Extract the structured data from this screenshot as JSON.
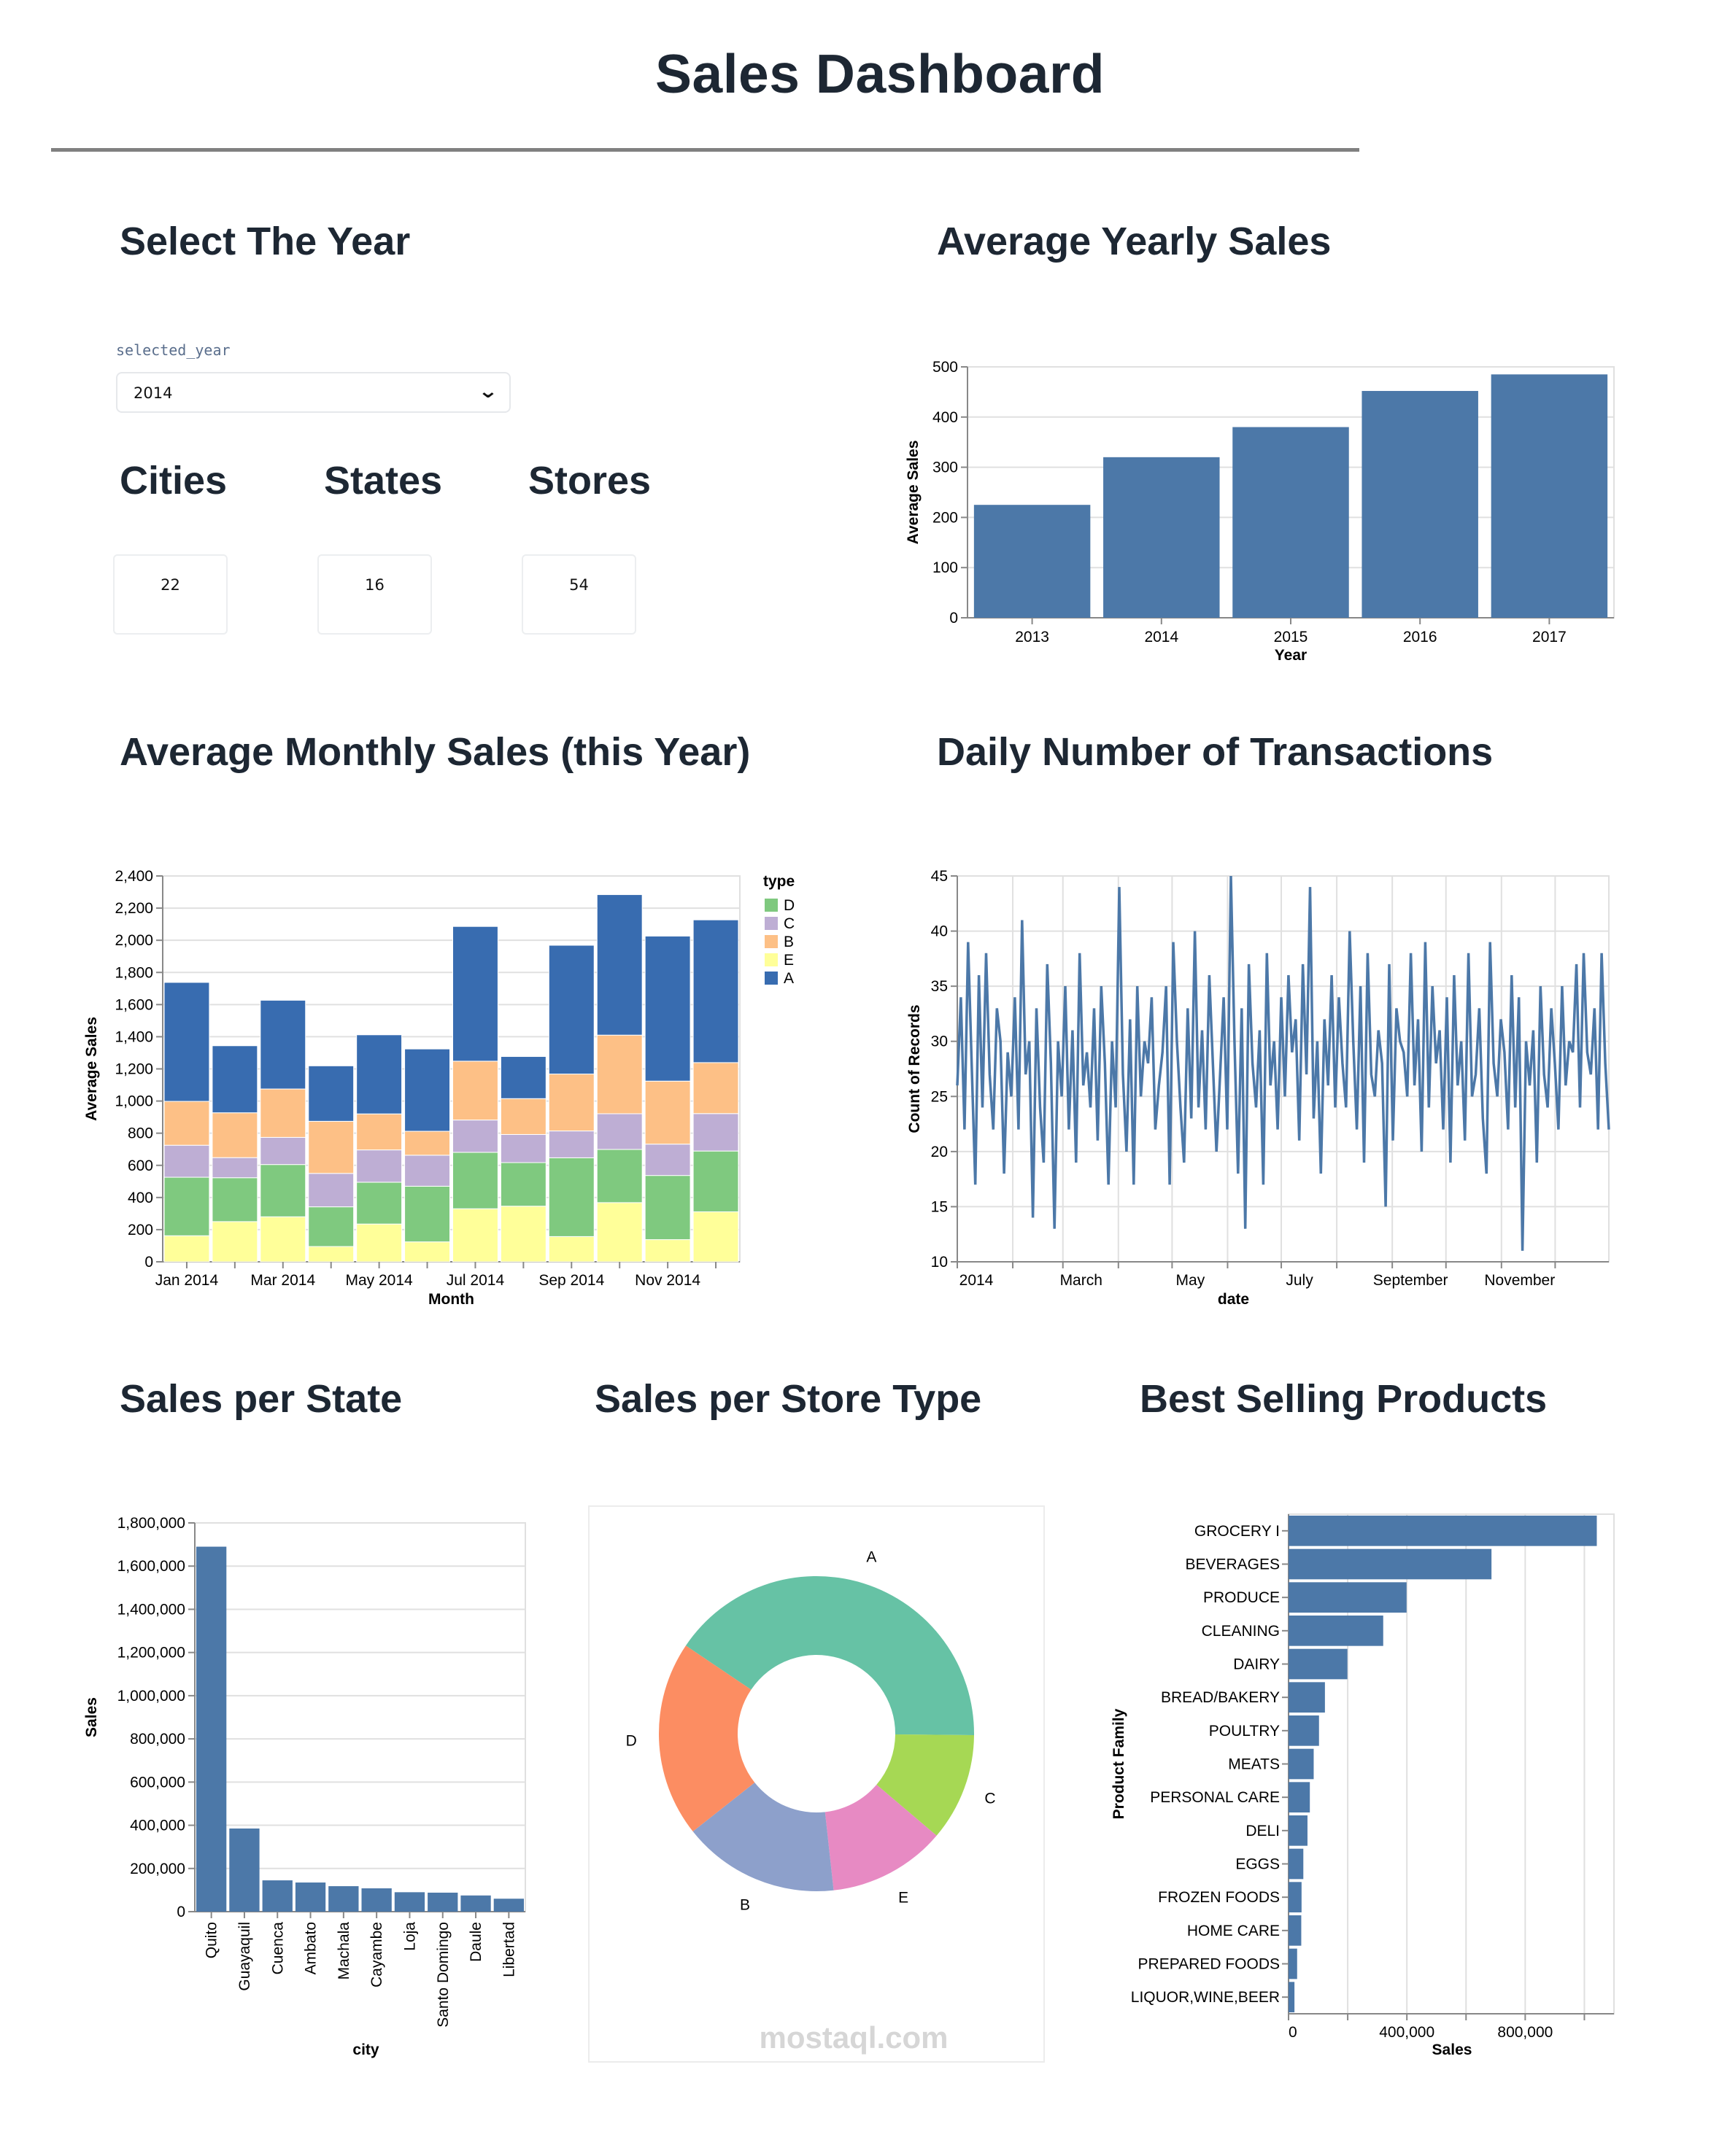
{
  "header": {
    "title": "Sales Dashboard"
  },
  "year_selector": {
    "heading": "Select The Year",
    "label": "selected_year",
    "value": "2014",
    "icon": "chevron-down-icon"
  },
  "kpis": [
    {
      "label": "Cities",
      "value": "22"
    },
    {
      "label": "States",
      "value": "16"
    },
    {
      "label": "Stores",
      "value": "54"
    }
  ],
  "headings": {
    "yearly": "Average Yearly Sales",
    "monthly": "Average Monthly Sales (this Year)",
    "daily": "Daily Number of Transactions",
    "state": "Sales per State",
    "store_type": "Sales per Store Type",
    "products": "Best Selling Products"
  },
  "watermark": "mostaql.com",
  "chart_data": [
    {
      "id": "yearly",
      "type": "bar",
      "categories": [
        "2013",
        "2014",
        "2015",
        "2016",
        "2017"
      ],
      "values": [
        225,
        320,
        380,
        452,
        485
      ],
      "xlabel": "Year",
      "ylabel": "Average Sales",
      "ylim": [
        0,
        500
      ],
      "yticks": [
        "0",
        "100",
        "200",
        "300",
        "400",
        "500"
      ],
      "grid": true,
      "color": "#4c78a8"
    },
    {
      "id": "monthly",
      "type": "bar",
      "stacked": true,
      "categories": [
        "Jan 2014",
        "Feb 2014",
        "Mar 2014",
        "Apr 2014",
        "May 2014",
        "Jun 2014",
        "Jul 2014",
        "Aug 2014",
        "Sep 2014",
        "Oct 2014",
        "Nov 2014",
        "Dec 2014"
      ],
      "xticklabels": [
        "Jan 2014",
        "",
        "Mar 2014",
        "",
        "May 2014",
        "",
        "Jul 2014",
        "",
        "Sep 2014",
        "",
        "Nov 2014",
        ""
      ],
      "series": [
        {
          "name": "E",
          "color": "#ffff99",
          "values": [
            162,
            250,
            280,
            95,
            235,
            124,
            330,
            346,
            157,
            368,
            138,
            311
          ]
        },
        {
          "name": "D",
          "color": "#7fc97f",
          "values": [
            364,
            273,
            325,
            247,
            260,
            346,
            351,
            271,
            490,
            331,
            399,
            378
          ]
        },
        {
          "name": "C",
          "color": "#beaed4",
          "values": [
            199,
            125,
            169,
            208,
            201,
            193,
            201,
            175,
            167,
            222,
            195,
            233
          ]
        },
        {
          "name": "B",
          "color": "#fdc086",
          "values": [
            273,
            279,
            301,
            324,
            224,
            149,
            366,
            223,
            354,
            489,
            392,
            317
          ]
        },
        {
          "name": "A",
          "color": "#386cb0",
          "values": [
            740,
            417,
            552,
            345,
            492,
            512,
            838,
            262,
            801,
            874,
            902,
            888
          ]
        }
      ],
      "legend": {
        "title": "type",
        "order": [
          "D",
          "C",
          "B",
          "E",
          "A"
        ],
        "placement": "right"
      },
      "xlabel": "Month",
      "ylabel": "Average Sales",
      "ylim": [
        0,
        2400
      ],
      "yticks": [
        "0",
        "200",
        "400",
        "600",
        "800",
        "1,000",
        "1,200",
        "1,400",
        "1,600",
        "1,800",
        "2,000",
        "2,200",
        "2,400"
      ],
      "grid": true
    },
    {
      "id": "daily",
      "type": "line",
      "date_range": [
        "2014-01-01",
        "2014-12-31"
      ],
      "xticklabels": [
        "2014",
        "March",
        "May",
        "July",
        "September",
        "November"
      ],
      "values": [
        26,
        34,
        22,
        39,
        28,
        17,
        36,
        24,
        38,
        27,
        22,
        33,
        30,
        18,
        29,
        25,
        34,
        22,
        41,
        27,
        30,
        14,
        33,
        24,
        19,
        37,
        28,
        13,
        30,
        25,
        35,
        22,
        31,
        19,
        38,
        26,
        29,
        24,
        33,
        21,
        35,
        28,
        17,
        30,
        24,
        44,
        27,
        20,
        32,
        17,
        35,
        25,
        30,
        28,
        34,
        22,
        26,
        29,
        35,
        17,
        39,
        30,
        24,
        19,
        33,
        23,
        40,
        24,
        31,
        22,
        36,
        28,
        20,
        27,
        34,
        22,
        45,
        30,
        18,
        33,
        13,
        37,
        28,
        24,
        31,
        17,
        38,
        26,
        30,
        22,
        34,
        25,
        36,
        29,
        32,
        21,
        37,
        27,
        44,
        23,
        30,
        18,
        32,
        26,
        36,
        24,
        34,
        28,
        24,
        40,
        30,
        22,
        35,
        19,
        38,
        27,
        25,
        31,
        28,
        15,
        37,
        21,
        33,
        30,
        29,
        25,
        38,
        26,
        32,
        20,
        39,
        24,
        35,
        28,
        31,
        22,
        34,
        19,
        36,
        26,
        30,
        21,
        38,
        25,
        27,
        33,
        23,
        18,
        39,
        28,
        25,
        32,
        29,
        22,
        36,
        24,
        34,
        11,
        30,
        26,
        31,
        19,
        35,
        27,
        24,
        33,
        28,
        22,
        35,
        26,
        30,
        29,
        37,
        24,
        38,
        29,
        27,
        33,
        22,
        38,
        28,
        22
      ],
      "xlabel": "date",
      "ylabel": "Count of Records",
      "ylim": [
        10,
        45
      ],
      "yticks": [
        "10",
        "15",
        "20",
        "25",
        "30",
        "35",
        "40",
        "45"
      ],
      "grid": true,
      "color": "#4c78a8"
    },
    {
      "id": "state",
      "type": "bar",
      "categories": [
        "Quito",
        "Guayaquil",
        "Cuenca",
        "Ambato",
        "Machala",
        "Cayambe",
        "Loja",
        "Santo Domingo",
        "Daule",
        "Libertad"
      ],
      "values": [
        1690000,
        385000,
        145000,
        135000,
        118000,
        108000,
        90000,
        88000,
        75000,
        60000
      ],
      "xlabel": "city",
      "ylabel": "Sales",
      "ylim": [
        0,
        1800000
      ],
      "yticks": [
        "0",
        "200,000",
        "400,000",
        "600,000",
        "800,000",
        "1,000,000",
        "1,200,000",
        "1,400,000",
        "1,600,000",
        "1,800,000"
      ],
      "grid": true,
      "color": "#4c78a8"
    },
    {
      "id": "store_type",
      "type": "pie",
      "donut": true,
      "labels": [
        "A",
        "C",
        "E",
        "B",
        "D"
      ],
      "values": [
        40.5,
        11,
        12,
        16,
        20
      ],
      "colors": [
        "#66c2a5",
        "#a6d854",
        "#e78ac3",
        "#8da0cb",
        "#fc8d62"
      ]
    },
    {
      "id": "products",
      "type": "bar",
      "orientation": "horizontal",
      "categories": [
        "GROCERY I",
        "BEVERAGES",
        "PRODUCE",
        "CLEANING",
        "DAIRY",
        "BREAD/BAKERY",
        "POULTRY",
        "MEATS",
        "PERSONAL CARE",
        "DELI",
        "EGGS",
        "FROZEN FOODS",
        "HOME CARE",
        "PREPARED FOODS",
        "LIQUOR,WINE,BEER"
      ],
      "values": [
        1042000,
        686000,
        399000,
        320000,
        199000,
        123000,
        103000,
        85000,
        72000,
        64000,
        50000,
        44000,
        43000,
        29000,
        20000
      ],
      "xlabel": "Sales",
      "ylabel": "Product Family",
      "xlim": [
        0,
        1100000
      ],
      "xticks": [
        "0",
        "400,000",
        "800,000"
      ],
      "grid": true,
      "color": "#4c78a8"
    }
  ]
}
